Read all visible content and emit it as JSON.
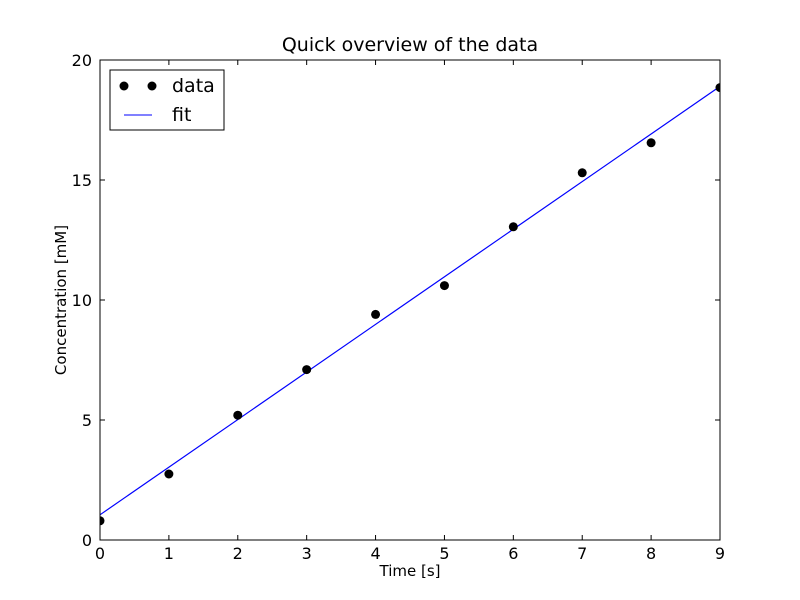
{
  "chart_data": {
    "type": "scatter",
    "title": "Quick overview of the data",
    "xlabel": "Time [s]",
    "ylabel": "Concentration [mM]",
    "xlim": [
      0,
      9
    ],
    "ylim": [
      0,
      20
    ],
    "xticks": [
      0,
      1,
      2,
      3,
      4,
      5,
      6,
      7,
      8,
      9
    ],
    "yticks": [
      0,
      5,
      10,
      15,
      20
    ],
    "grid": false,
    "legend_position": "top-left",
    "series": [
      {
        "name": "data",
        "kind": "scatter",
        "color": "#000000",
        "x": [
          0,
          1,
          2,
          3,
          4,
          5,
          6,
          7,
          8,
          9
        ],
        "y": [
          0.8,
          2.75,
          5.2,
          7.1,
          9.4,
          10.6,
          13.05,
          15.3,
          16.55,
          18.85
        ]
      },
      {
        "name": "fit",
        "kind": "line",
        "color": "#0000ff",
        "x": [
          0,
          9
        ],
        "y": [
          1.05,
          18.9
        ]
      }
    ]
  }
}
